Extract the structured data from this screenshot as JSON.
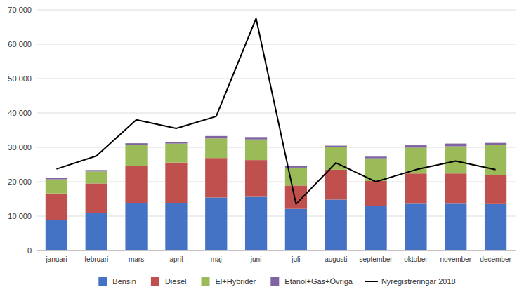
{
  "chart_data": {
    "type": "bar",
    "stacked": true,
    "categories": [
      "januari",
      "februari",
      "mars",
      "april",
      "maj",
      "juni",
      "juli",
      "augusti",
      "september",
      "oktober",
      "november",
      "december"
    ],
    "series": [
      {
        "name": "Bensin",
        "color": "#4472c4",
        "values": [
          8800,
          11000,
          13800,
          13800,
          15400,
          15600,
          12100,
          14800,
          13000,
          13600,
          13600,
          13500
        ]
      },
      {
        "name": "Diesel",
        "color": "#c0504d",
        "values": [
          7800,
          8500,
          10700,
          11800,
          11500,
          10700,
          6800,
          8700,
          7200,
          8800,
          8800,
          8500
        ]
      },
      {
        "name": "El+Hybrider",
        "color": "#9bbb59",
        "values": [
          4100,
          3500,
          6200,
          5500,
          5700,
          6000,
          5200,
          6500,
          6600,
          7500,
          7900,
          8700
        ]
      },
      {
        "name": "Etanol+Gas+Övriga",
        "color": "#8064a2",
        "values": [
          400,
          400,
          500,
          500,
          700,
          700,
          400,
          500,
          500,
          700,
          800,
          600
        ]
      },
      {
        "name": "Nyregistreringar 2018",
        "type": "line",
        "color": "#000000",
        "values": [
          23700,
          27500,
          38000,
          35500,
          39000,
          67500,
          13500,
          25500,
          20000,
          23500,
          26000,
          23500
        ]
      }
    ],
    "ylim": [
      0,
      70000
    ],
    "yticks": [
      0,
      {
        "value": 10000,
        "label": "10 000"
      },
      {
        "value": 20000,
        "label": "20 000"
      },
      {
        "value": 30000,
        "label": "30 000"
      },
      {
        "value": 40000,
        "label": "40 000"
      },
      {
        "value": 50000,
        "label": "50 000"
      },
      {
        "value": 60000,
        "label": "60 000"
      },
      {
        "value": 70000,
        "label": "70 000"
      }
    ],
    "grid": true,
    "legend": "bottom"
  }
}
